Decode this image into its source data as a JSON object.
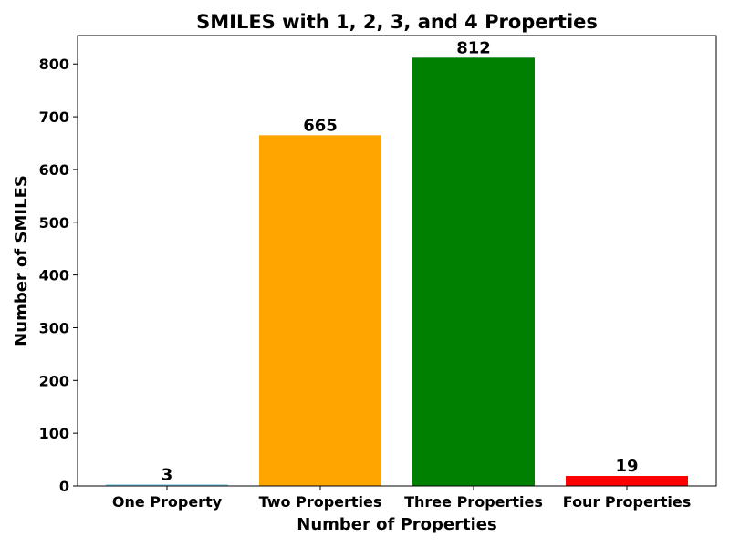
{
  "chart_data": {
    "type": "bar",
    "title": "SMILES with 1, 2, 3, and 4 Properties",
    "xlabel": "Number of Properties",
    "ylabel": "Number of SMILES",
    "categories": [
      "One Property",
      "Two Properties",
      "Three Properties",
      "Four Properties"
    ],
    "values": [
      3,
      665,
      812,
      19
    ],
    "value_labels": [
      "3",
      "665",
      "812",
      "19"
    ],
    "colors": [
      "#87ceeb",
      "#ffa500",
      "#008000",
      "#ff0000"
    ],
    "ylim": [
      0,
      854
    ],
    "yticks": [
      0,
      100,
      200,
      300,
      400,
      500,
      600,
      700,
      800
    ],
    "ytick_labels": [
      "0",
      "100",
      "200",
      "300",
      "400",
      "500",
      "600",
      "700",
      "800"
    ],
    "grid": false,
    "legend": "none"
  }
}
